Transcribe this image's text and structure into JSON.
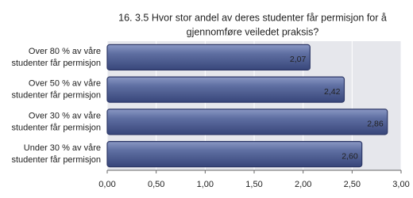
{
  "chart_data": {
    "type": "bar",
    "orientation": "horizontal",
    "title": [
      "16. 3.5 Hvor stor andel av deres studenter får permisjon for å",
      "gjennomføre veiledet praksis?"
    ],
    "categories": [
      [
        "Over 80 % av våre",
        "studenter får permisjon"
      ],
      [
        "Over 50 % av våre",
        "studenter får permisjon"
      ],
      [
        "Over 30 % av våre",
        "studenter får permisjon"
      ],
      [
        "Under 30 % av våre",
        "studenter får permisjon"
      ]
    ],
    "values": [
      2.07,
      2.42,
      2.86,
      2.6
    ],
    "value_labels": [
      "2,07",
      "2,42",
      "2,86",
      "2,60"
    ],
    "color": "#56669a",
    "xlim": [
      0,
      3
    ],
    "xticks": [
      {
        "value": 0,
        "label": "0,00"
      },
      {
        "value": 0.5,
        "label": "0,50"
      },
      {
        "value": 1,
        "label": "1,00"
      },
      {
        "value": 1.5,
        "label": "1,50"
      },
      {
        "value": 2,
        "label": "2,00"
      },
      {
        "value": 2.5,
        "label": "2,50"
      },
      {
        "value": 3,
        "label": "3,00"
      }
    ],
    "grid": true
  }
}
